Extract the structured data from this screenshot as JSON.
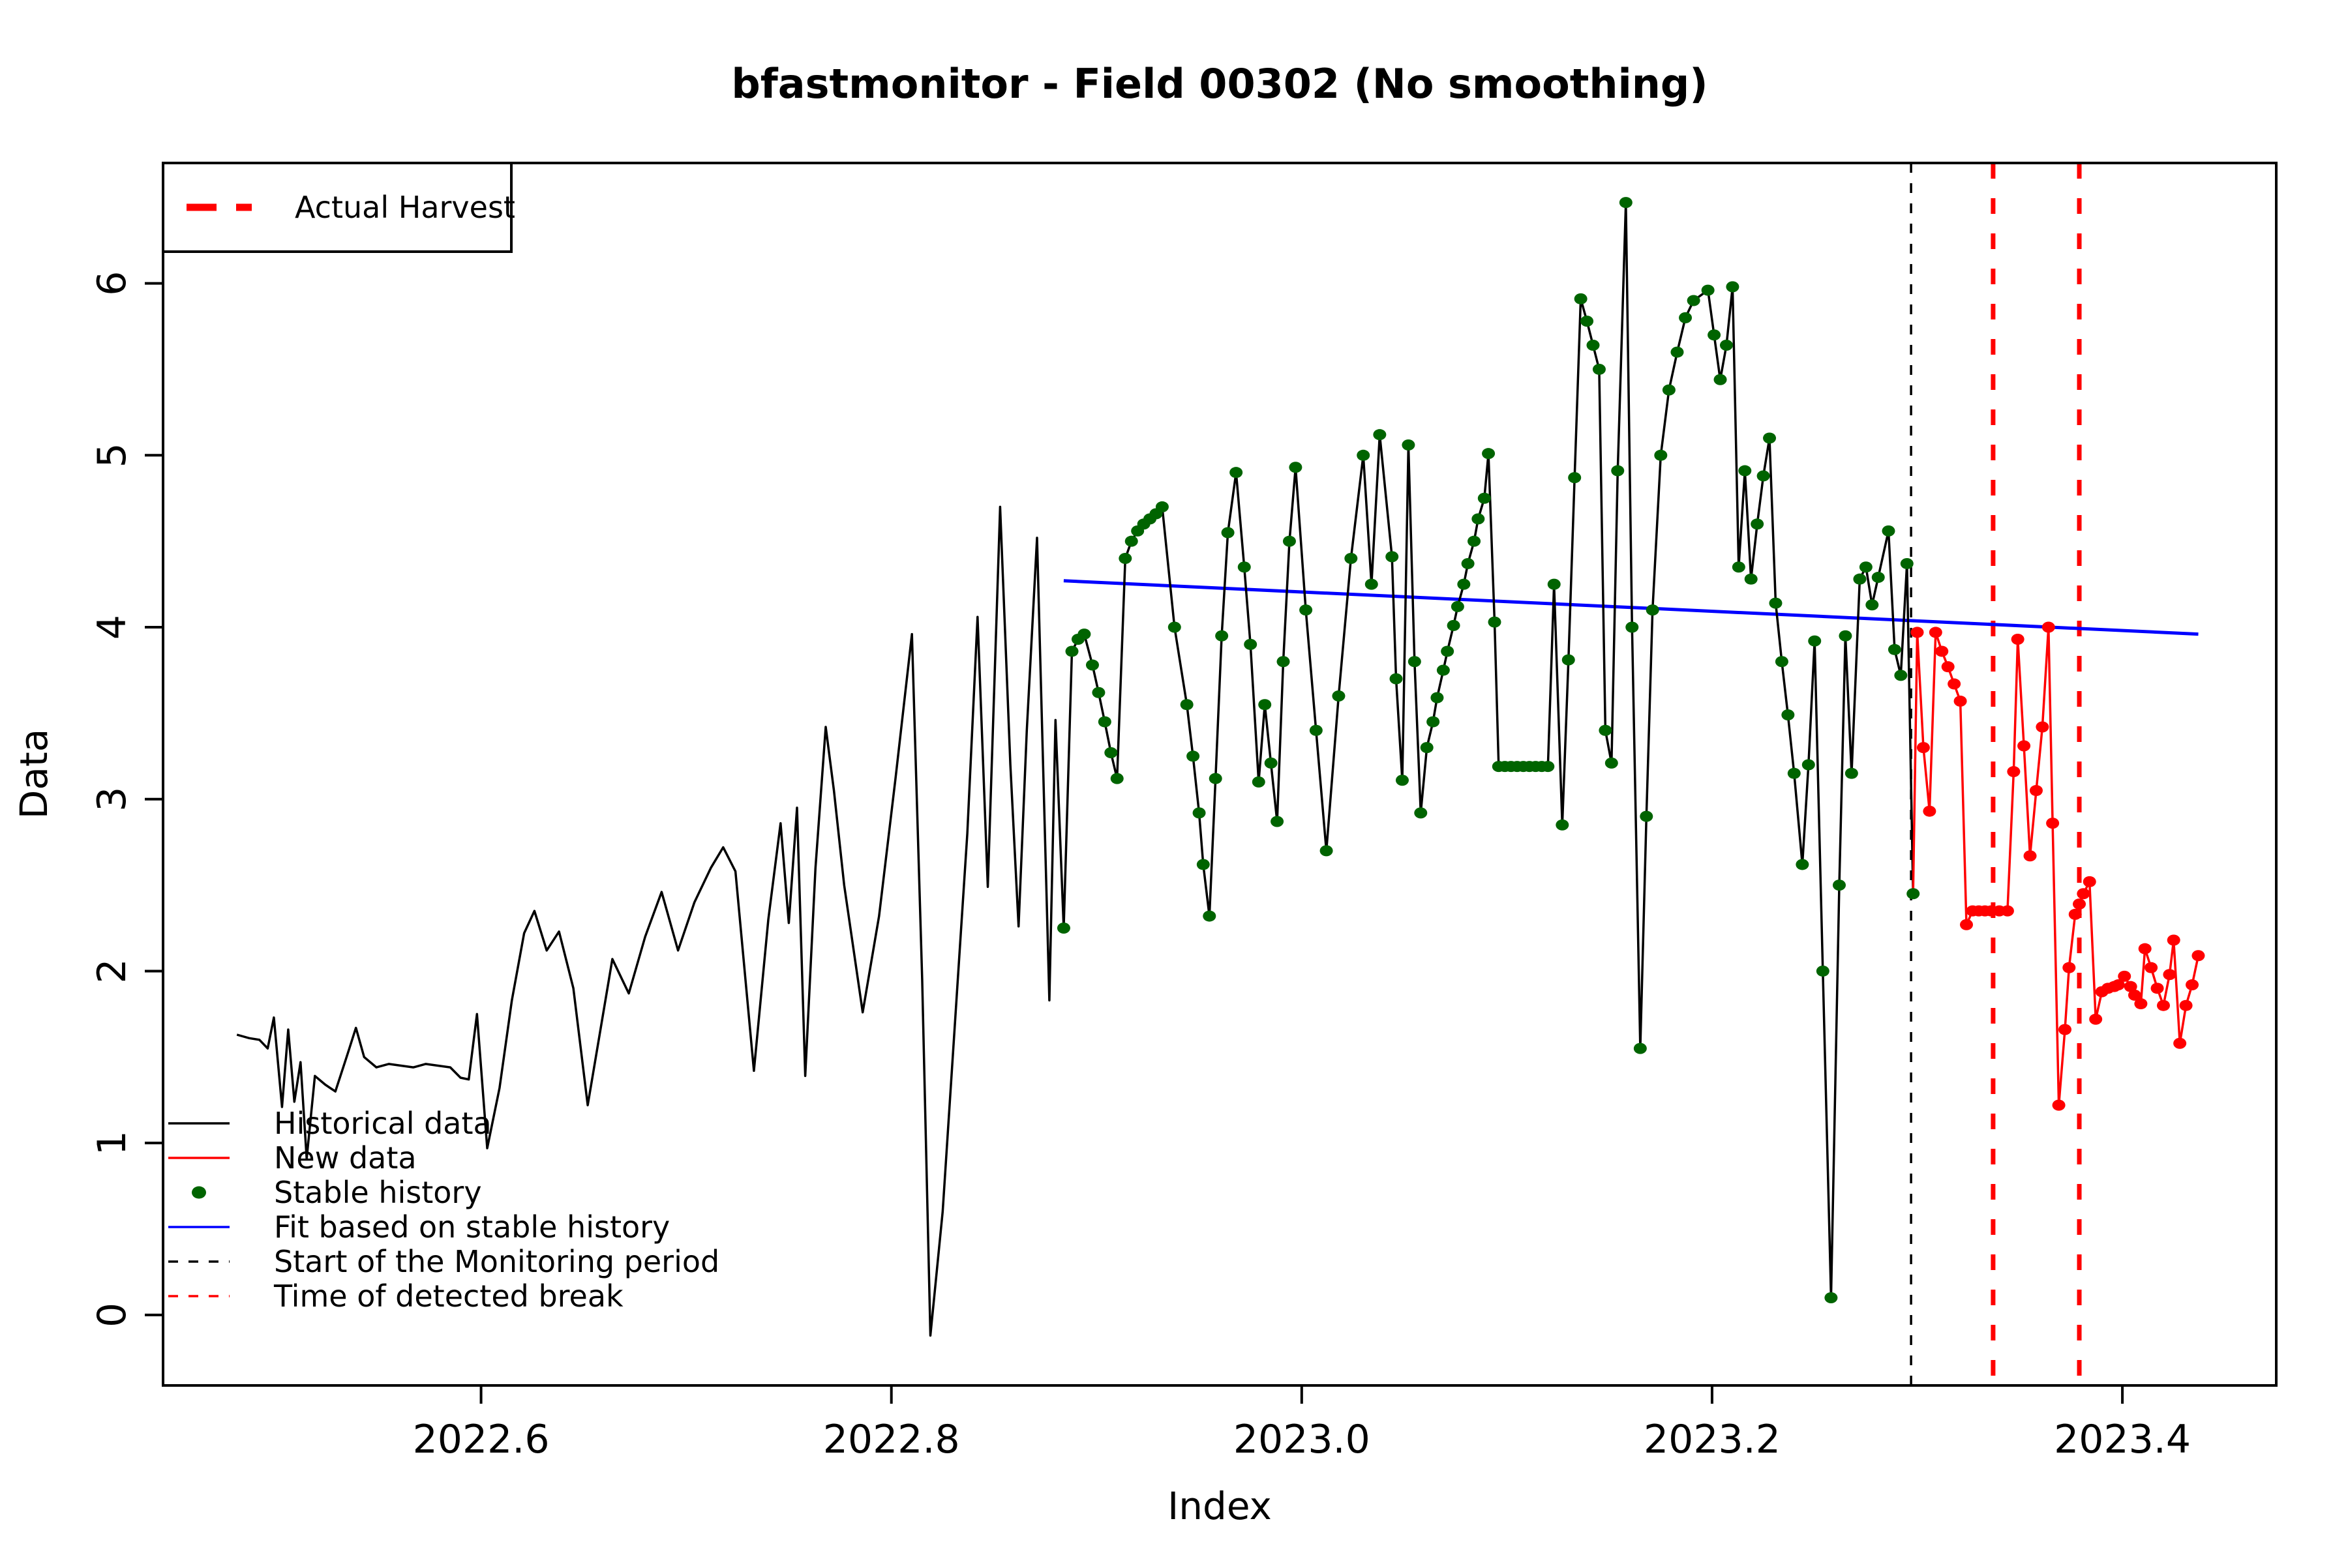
{
  "title": "bfastmonitor - Field 00302 (No smoothing)",
  "axes": {
    "xlabel": "Index",
    "ylabel": "Data",
    "xlim": [
      2022.445,
      2023.475
    ],
    "ylim": [
      -0.41,
      6.7
    ],
    "x_ticks": [
      {
        "v": 2022.6,
        "label": "2022.6"
      },
      {
        "v": 2022.8,
        "label": "2022.8"
      },
      {
        "v": 2023.0,
        "label": "2023.0"
      },
      {
        "v": 2023.2,
        "label": "2023.2"
      },
      {
        "v": 2023.4,
        "label": "2023.4"
      }
    ],
    "y_ticks": [
      {
        "v": 0,
        "label": "0"
      },
      {
        "v": 1,
        "label": "1"
      },
      {
        "v": 2,
        "label": "2"
      },
      {
        "v": 3,
        "label": "3"
      },
      {
        "v": 4,
        "label": "4"
      },
      {
        "v": 5,
        "label": "5"
      },
      {
        "v": 6,
        "label": "6"
      }
    ],
    "grid": "off"
  },
  "colors": {
    "historical": "#000000",
    "new_data": "#FF0000",
    "stable_history": "#006400",
    "fit": "#0000FF",
    "monitoring_start": "#000000",
    "harvest": "#FF0000",
    "background": "#FFFFFF"
  },
  "legend_top": {
    "label": "Actual Harvest",
    "line_color": "#FF0000",
    "line_style": "dashed-thick"
  },
  "legend_bottom": {
    "items": [
      {
        "label": "Historical data",
        "color": "#000000",
        "sample": "line-solid"
      },
      {
        "label": "New data",
        "color": "#FF0000",
        "sample": "line-solid"
      },
      {
        "label": "Stable history",
        "color": "#006400",
        "sample": "dot"
      },
      {
        "label": "Fit based on stable history",
        "color": "#0000FF",
        "sample": "line-solid"
      },
      {
        "label": "Start of the Monitoring period",
        "color": "#000000",
        "sample": "line-dashed"
      },
      {
        "label": "Time of detected break",
        "color": "#FF0000",
        "sample": "line-dashed"
      }
    ]
  },
  "chart_data": {
    "type": "line",
    "title": "bfastmonitor - Field 00302 (No smoothing)",
    "xlabel": "Index",
    "ylabel": "Data",
    "xlim": [
      2022.445,
      2023.475
    ],
    "ylim": [
      -0.41,
      6.7
    ],
    "legend_position": [
      "top-left-box",
      "bottom-left-list"
    ],
    "stable_history_range": [
      2022.884,
      2023.298
    ],
    "series": [
      {
        "name": "Historical data",
        "role": "historical",
        "color": "#000000",
        "style": "solid",
        "points": [
          [
            2022.481,
            1.63
          ],
          [
            2022.487,
            1.61
          ],
          [
            2022.492,
            1.6
          ],
          [
            2022.496,
            1.55
          ],
          [
            2022.499,
            1.73
          ],
          [
            2022.503,
            1.21
          ],
          [
            2022.506,
            1.66
          ],
          [
            2022.509,
            1.24
          ],
          [
            2022.512,
            1.47
          ],
          [
            2022.515,
            0.91
          ],
          [
            2022.519,
            1.39
          ],
          [
            2022.524,
            1.34
          ],
          [
            2022.529,
            1.3
          ],
          [
            2022.535,
            1.52
          ],
          [
            2022.539,
            1.67
          ],
          [
            2022.543,
            1.5
          ],
          [
            2022.549,
            1.44
          ],
          [
            2022.555,
            1.46
          ],
          [
            2022.561,
            1.45
          ],
          [
            2022.567,
            1.44
          ],
          [
            2022.573,
            1.46
          ],
          [
            2022.579,
            1.45
          ],
          [
            2022.585,
            1.44
          ],
          [
            2022.59,
            1.38
          ],
          [
            2022.594,
            1.37
          ],
          [
            2022.598,
            1.75
          ],
          [
            2022.603,
            0.97
          ],
          [
            2022.609,
            1.32
          ],
          [
            2022.615,
            1.83
          ],
          [
            2022.621,
            2.22
          ],
          [
            2022.626,
            2.35
          ],
          [
            2022.632,
            2.12
          ],
          [
            2022.638,
            2.23
          ],
          [
            2022.645,
            1.9
          ],
          [
            2022.652,
            1.22
          ],
          [
            2022.664,
            2.07
          ],
          [
            2022.672,
            1.87
          ],
          [
            2022.68,
            2.2
          ],
          [
            2022.688,
            2.46
          ],
          [
            2022.696,
            2.12
          ],
          [
            2022.704,
            2.4
          ],
          [
            2022.712,
            2.6
          ],
          [
            2022.718,
            2.72
          ],
          [
            2022.724,
            2.58
          ],
          [
            2022.733,
            1.42
          ],
          [
            2022.74,
            2.3
          ],
          [
            2022.746,
            2.86
          ],
          [
            2022.75,
            2.28
          ],
          [
            2022.754,
            2.95
          ],
          [
            2022.758,
            1.39
          ],
          [
            2022.763,
            2.6
          ],
          [
            2022.768,
            3.42
          ],
          [
            2022.772,
            3.05
          ],
          [
            2022.777,
            2.5
          ],
          [
            2022.786,
            1.76
          ],
          [
            2022.794,
            2.32
          ],
          [
            2022.802,
            3.12
          ],
          [
            2022.81,
            3.96
          ],
          [
            2022.815,
            1.95
          ],
          [
            2022.819,
            -0.12
          ],
          [
            2022.825,
            0.6
          ],
          [
            2022.831,
            1.7
          ],
          [
            2022.837,
            2.8
          ],
          [
            2022.842,
            4.06
          ],
          [
            2022.847,
            2.49
          ],
          [
            2022.853,
            4.7
          ],
          [
            2022.858,
            3.2
          ],
          [
            2022.862,
            2.26
          ],
          [
            2022.866,
            3.4
          ],
          [
            2022.871,
            4.52
          ],
          [
            2022.877,
            1.83
          ],
          [
            2022.88,
            3.46
          ],
          [
            2022.884,
            2.25
          ],
          [
            2022.888,
            3.86
          ],
          [
            2022.891,
            3.93
          ],
          [
            2022.894,
            3.96
          ],
          [
            2022.898,
            3.78
          ],
          [
            2022.901,
            3.62
          ],
          [
            2022.904,
            3.45
          ],
          [
            2022.907,
            3.27
          ],
          [
            2022.91,
            3.12
          ],
          [
            2022.914,
            4.4
          ],
          [
            2022.917,
            4.5
          ],
          [
            2022.92,
            4.56
          ],
          [
            2022.923,
            4.6
          ],
          [
            2022.926,
            4.63
          ],
          [
            2022.929,
            4.66
          ],
          [
            2022.932,
            4.7
          ],
          [
            2022.938,
            4.0
          ],
          [
            2022.944,
            3.55
          ],
          [
            2022.947,
            3.25
          ],
          [
            2022.95,
            2.92
          ],
          [
            2022.952,
            2.62
          ],
          [
            2022.955,
            2.32
          ],
          [
            2022.958,
            3.12
          ],
          [
            2022.961,
            3.95
          ],
          [
            2022.964,
            4.55
          ],
          [
            2022.968,
            4.9
          ],
          [
            2022.972,
            4.35
          ],
          [
            2022.975,
            3.9
          ],
          [
            2022.979,
            3.1
          ],
          [
            2022.982,
            3.55
          ],
          [
            2022.985,
            3.21
          ],
          [
            2022.988,
            2.87
          ],
          [
            2022.991,
            3.8
          ],
          [
            2022.994,
            4.5
          ],
          [
            2022.997,
            4.93
          ],
          [
            2023.002,
            4.1
          ],
          [
            2023.007,
            3.4
          ],
          [
            2023.012,
            2.7
          ],
          [
            2023.018,
            3.6
          ],
          [
            2023.024,
            4.4
          ],
          [
            2023.03,
            5.0
          ],
          [
            2023.034,
            4.25
          ],
          [
            2023.038,
            5.12
          ],
          [
            2023.044,
            4.41
          ],
          [
            2023.046,
            3.7
          ],
          [
            2023.049,
            3.11
          ],
          [
            2023.052,
            5.06
          ],
          [
            2023.055,
            3.8
          ],
          [
            2023.058,
            2.92
          ],
          [
            2023.061,
            3.3
          ],
          [
            2023.064,
            3.45
          ],
          [
            2023.066,
            3.59
          ],
          [
            2023.069,
            3.75
          ],
          [
            2023.071,
            3.86
          ],
          [
            2023.074,
            4.01
          ],
          [
            2023.076,
            4.12
          ],
          [
            2023.079,
            4.25
          ],
          [
            2023.081,
            4.37
          ],
          [
            2023.084,
            4.5
          ],
          [
            2023.086,
            4.63
          ],
          [
            2023.089,
            4.75
          ],
          [
            2023.091,
            5.01
          ],
          [
            2023.094,
            4.03
          ],
          [
            2023.096,
            3.19
          ],
          [
            2023.099,
            3.19
          ],
          [
            2023.102,
            3.19
          ],
          [
            2023.105,
            3.19
          ],
          [
            2023.108,
            3.19
          ],
          [
            2023.111,
            3.19
          ],
          [
            2023.114,
            3.19
          ],
          [
            2023.117,
            3.19
          ],
          [
            2023.12,
            3.19
          ],
          [
            2023.123,
            4.25
          ],
          [
            2023.127,
            2.85
          ],
          [
            2023.13,
            3.81
          ],
          [
            2023.133,
            4.87
          ],
          [
            2023.136,
            5.91
          ],
          [
            2023.139,
            5.78
          ],
          [
            2023.142,
            5.64
          ],
          [
            2023.145,
            5.5
          ],
          [
            2023.148,
            3.4
          ],
          [
            2023.151,
            3.21
          ],
          [
            2023.154,
            4.91
          ],
          [
            2023.158,
            6.47
          ],
          [
            2023.161,
            4.0
          ],
          [
            2023.165,
            1.55
          ],
          [
            2023.168,
            2.9
          ],
          [
            2023.171,
            4.1
          ],
          [
            2023.175,
            5.0
          ],
          [
            2023.179,
            5.38
          ],
          [
            2023.183,
            5.6
          ],
          [
            2023.187,
            5.8
          ],
          [
            2023.191,
            5.9
          ],
          [
            2023.198,
            5.96
          ],
          [
            2023.201,
            5.7
          ],
          [
            2023.204,
            5.44
          ],
          [
            2023.207,
            5.64
          ],
          [
            2023.21,
            5.98
          ],
          [
            2023.213,
            4.35
          ],
          [
            2023.216,
            4.91
          ],
          [
            2023.219,
            4.28
          ],
          [
            2023.222,
            4.6
          ],
          [
            2023.225,
            4.88
          ],
          [
            2023.228,
            5.1
          ],
          [
            2023.231,
            4.14
          ],
          [
            2023.234,
            3.8
          ],
          [
            2023.237,
            3.49
          ],
          [
            2023.24,
            3.15
          ],
          [
            2023.244,
            2.62
          ],
          [
            2023.247,
            3.2
          ],
          [
            2023.25,
            3.92
          ],
          [
            2023.254,
            2.0
          ],
          [
            2023.258,
            0.1
          ],
          [
            2023.262,
            2.5
          ],
          [
            2023.265,
            3.95
          ],
          [
            2023.268,
            3.15
          ],
          [
            2023.272,
            4.28
          ],
          [
            2023.275,
            4.35
          ],
          [
            2023.278,
            4.13
          ],
          [
            2023.281,
            4.29
          ],
          [
            2023.286,
            4.56
          ],
          [
            2023.289,
            3.87
          ],
          [
            2023.292,
            3.72
          ],
          [
            2023.295,
            4.37
          ],
          [
            2023.298,
            2.45
          ]
        ]
      },
      {
        "name": "Stable history",
        "role": "stable-markers",
        "color": "#006400",
        "marker": "filled-circle",
        "note": "green dots drawn on Historical data points with 2022.884 <= t <= 2023.298"
      },
      {
        "name": "New data",
        "role": "new",
        "color": "#FF0000",
        "style": "solid",
        "marker": "filled-circle",
        "points": [
          [
            2023.3,
            3.97
          ],
          [
            2023.303,
            3.3
          ],
          [
            2023.306,
            2.93
          ],
          [
            2023.309,
            3.97
          ],
          [
            2023.312,
            3.86
          ],
          [
            2023.315,
            3.77
          ],
          [
            2023.318,
            3.67
          ],
          [
            2023.321,
            3.57
          ],
          [
            2023.324,
            2.27
          ],
          [
            2023.327,
            2.35
          ],
          [
            2023.33,
            2.35
          ],
          [
            2023.333,
            2.35
          ],
          [
            2023.336,
            2.35
          ],
          [
            2023.34,
            2.35
          ],
          [
            2023.344,
            2.35
          ],
          [
            2023.347,
            3.16
          ],
          [
            2023.349,
            3.93
          ],
          [
            2023.352,
            3.31
          ],
          [
            2023.355,
            2.67
          ],
          [
            2023.358,
            3.05
          ],
          [
            2023.361,
            3.42
          ],
          [
            2023.364,
            4.0
          ],
          [
            2023.366,
            2.86
          ],
          [
            2023.369,
            1.22
          ],
          [
            2023.372,
            1.66
          ],
          [
            2023.374,
            2.02
          ],
          [
            2023.377,
            2.33
          ],
          [
            2023.379,
            2.39
          ],
          [
            2023.381,
            2.45
          ],
          [
            2023.384,
            2.52
          ],
          [
            2023.387,
            1.72
          ],
          [
            2023.39,
            1.88
          ],
          [
            2023.393,
            1.9
          ],
          [
            2023.396,
            1.91
          ],
          [
            2023.398,
            1.92
          ],
          [
            2023.401,
            1.97
          ],
          [
            2023.404,
            1.91
          ],
          [
            2023.406,
            1.86
          ],
          [
            2023.409,
            1.81
          ],
          [
            2023.411,
            2.13
          ],
          [
            2023.414,
            2.02
          ],
          [
            2023.417,
            1.9
          ],
          [
            2023.42,
            1.8
          ],
          [
            2023.423,
            1.98
          ],
          [
            2023.425,
            2.18
          ],
          [
            2023.428,
            1.58
          ],
          [
            2023.431,
            1.8
          ],
          [
            2023.434,
            1.92
          ],
          [
            2023.437,
            2.09
          ]
        ]
      },
      {
        "name": "Fit based on stable history",
        "role": "fit",
        "color": "#0000FF",
        "style": "solid",
        "points": [
          [
            2022.884,
            4.27
          ],
          [
            2023.437,
            3.96
          ]
        ]
      }
    ],
    "vertical_lines": [
      {
        "name": "Start of the Monitoring period",
        "x": 2023.297,
        "color": "#000000",
        "style": "dashed",
        "weight": "thin"
      },
      {
        "name": "Actual Harvest",
        "x": 2023.337,
        "color": "#FF0000",
        "style": "dashed",
        "weight": "thick"
      },
      {
        "name": "Actual Harvest",
        "x": 2023.379,
        "color": "#FF0000",
        "style": "dashed",
        "weight": "thick"
      }
    ]
  }
}
